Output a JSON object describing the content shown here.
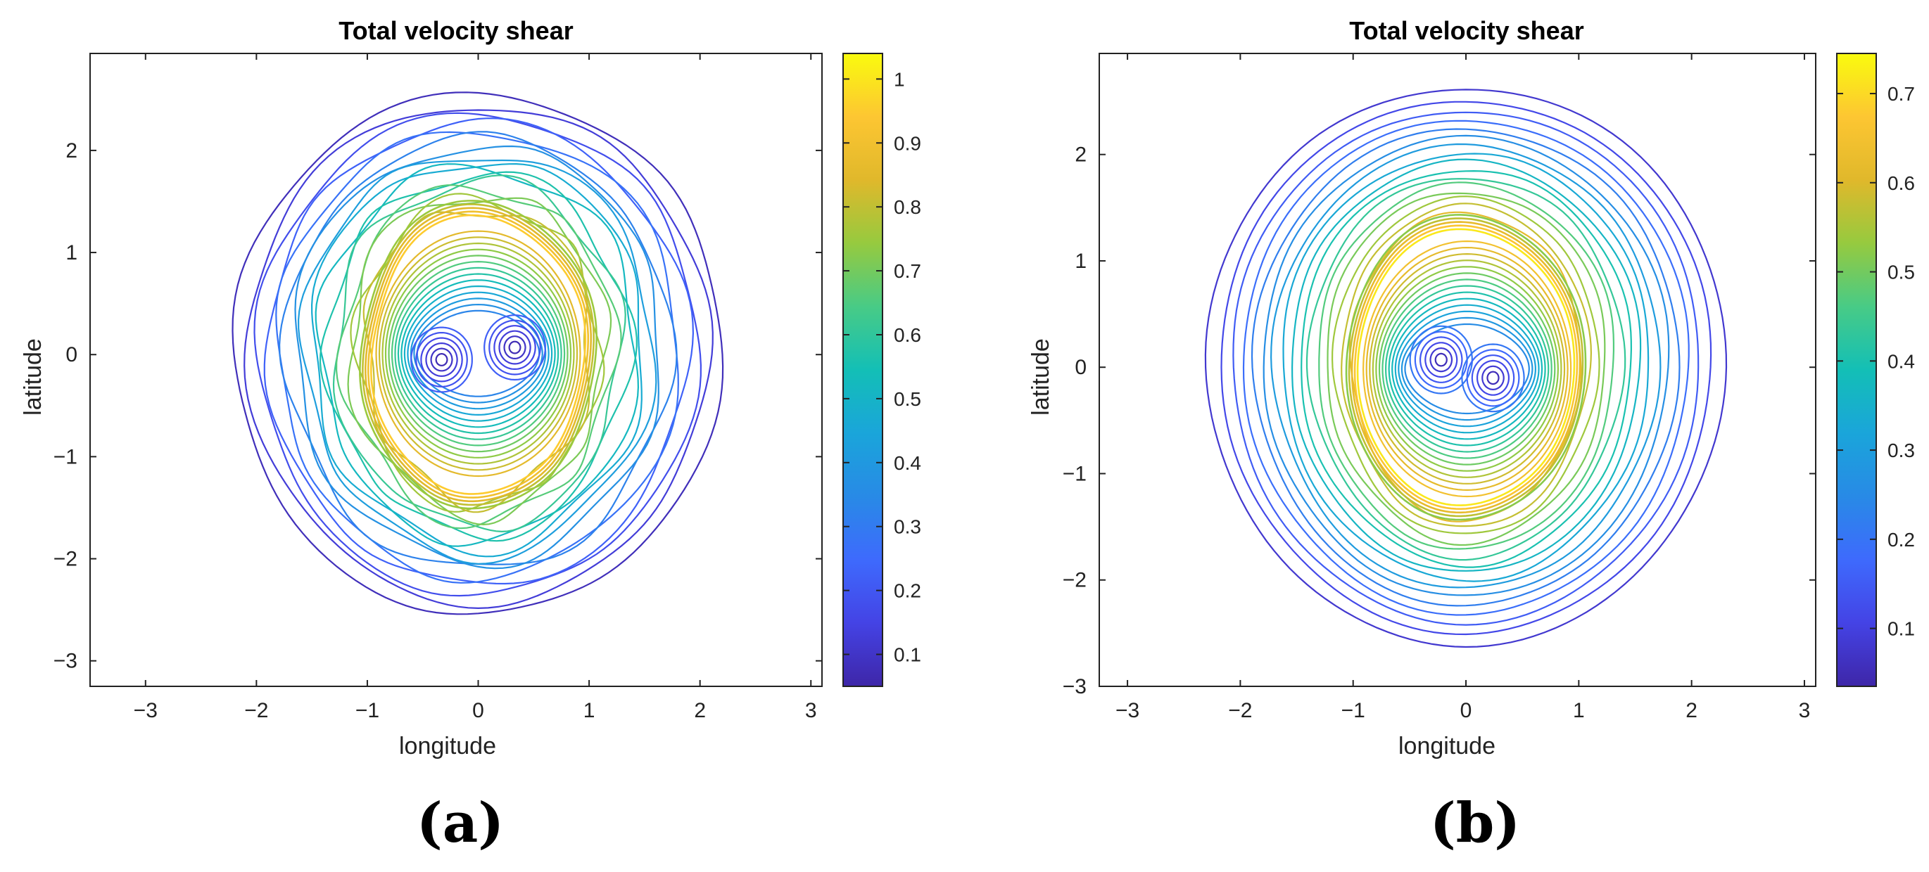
{
  "chart_data": [
    {
      "type": "contour",
      "panel_label": "(a)",
      "title": "Total velocity shear",
      "xlabel": "longitude",
      "ylabel": "latitude",
      "xlim": [
        -3.5,
        3.1
      ],
      "ylim": [
        -3.25,
        2.95
      ],
      "xticks": [
        -3,
        -2,
        -1,
        0,
        1,
        2,
        3
      ],
      "yticks": [
        -3,
        -2,
        -1,
        0,
        1,
        2
      ],
      "colorbar": {
        "range": [
          0.05,
          1.04
        ],
        "ticks": [
          0.1,
          0.2,
          0.3,
          0.4,
          0.5,
          0.6,
          0.7,
          0.8,
          0.9,
          1
        ],
        "colormap": "parula"
      },
      "vortex_centers": [
        [
          -0.33,
          -0.05
        ],
        [
          0.33,
          0.07
        ]
      ],
      "ring_peak": {
        "radius": 1.0,
        "value": 0.95
      },
      "outer_extent": {
        "x": 2.2,
        "y": 2.55
      },
      "colors": {
        "low": "#3e26a8",
        "mid": "#13bfb6",
        "high": "#f9fb0e"
      }
    },
    {
      "type": "contour",
      "panel_label": "(b)",
      "title": "Total velocity shear",
      "xlabel": "longitude",
      "ylabel": "latitude",
      "xlim": [
        -3.25,
        3.1
      ],
      "ylim": [
        -3.0,
        2.95
      ],
      "xticks": [
        -3,
        -2,
        -1,
        0,
        1,
        2,
        3
      ],
      "yticks": [
        -3,
        -2,
        -1,
        0,
        1,
        2
      ],
      "colorbar": {
        "range": [
          0.035,
          0.745
        ],
        "ticks": [
          0.1,
          0.2,
          0.3,
          0.4,
          0.5,
          0.6,
          0.7
        ],
        "colormap": "parula"
      },
      "vortex_centers": [
        [
          -0.22,
          0.07
        ],
        [
          0.24,
          -0.1
        ]
      ],
      "ring_peak": {
        "radius": 1.0,
        "value": 0.72
      },
      "outer_extent": {
        "x": 2.3,
        "y": 2.62
      },
      "colors": {
        "low": "#3e26a8",
        "mid": "#13bfb6",
        "high": "#f9fb0e"
      }
    }
  ]
}
